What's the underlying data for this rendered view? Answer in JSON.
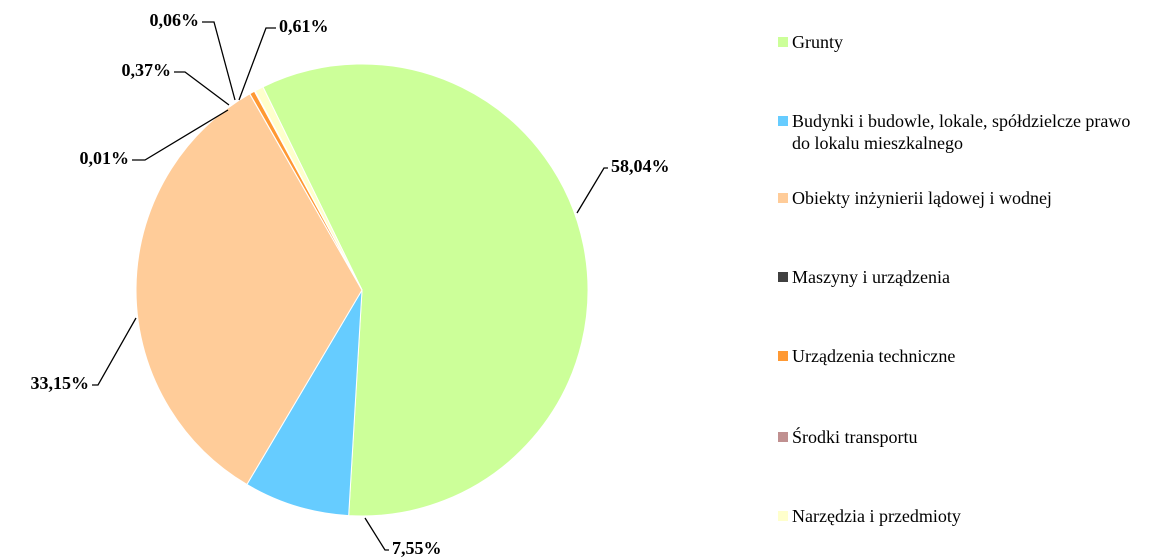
{
  "chart_data": {
    "type": "pie",
    "categories": [
      "Grunty",
      "Budynki i budowle, lokale, spółdzielcze prawo do lokalu mieszkalnego",
      "Obiekty inżynierii lądowej i wodnej",
      "Maszyny i urządzenia",
      "Urządzenia techniczne",
      "Środki transportu",
      "Narzędzia i przedmioty"
    ],
    "values": [
      58.04,
      7.55,
      33.15,
      0.01,
      0.37,
      0.06,
      0.61
    ],
    "value_labels": [
      "58,04%",
      "7,55%",
      "33,15%",
      "0,01%",
      "0,37%",
      "0,06%",
      "0,61%"
    ],
    "colors": [
      "#ccff99",
      "#66ccff",
      "#ffcc99",
      "#404040",
      "#ff9933",
      "#c09090",
      "#ffffcc"
    ],
    "legend": "right"
  }
}
